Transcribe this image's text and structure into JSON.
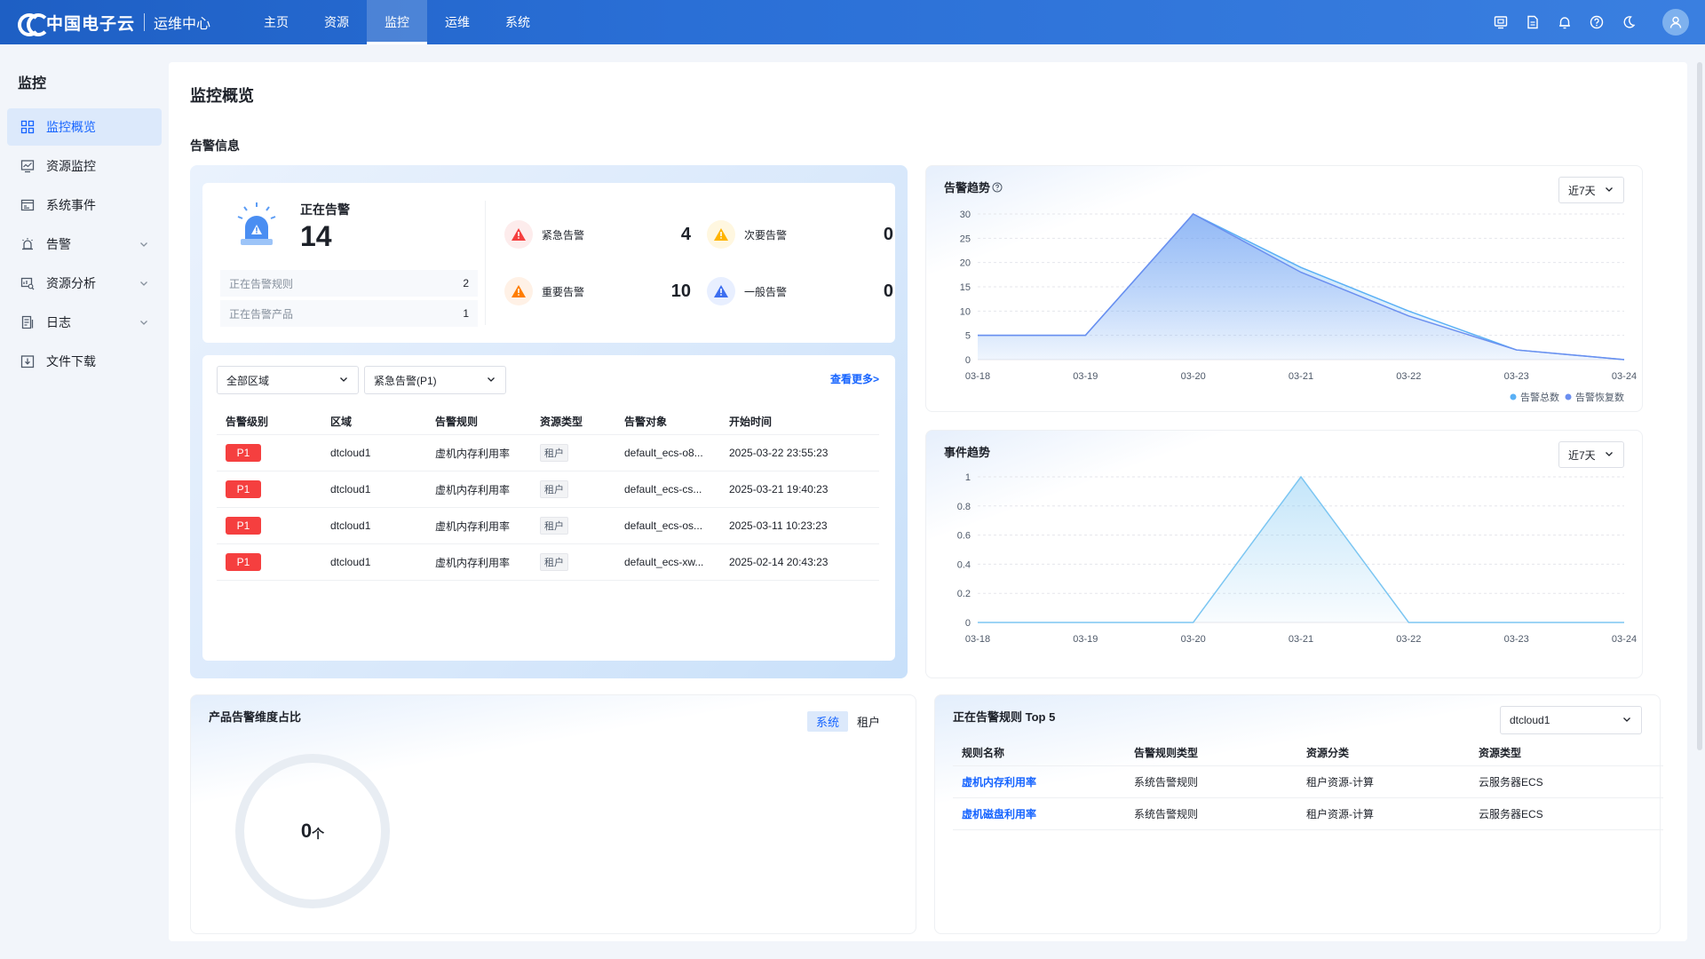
{
  "topbar": {
    "brand": "中国电子云",
    "subtitle": "运维中心",
    "nav": [
      "主页",
      "资源",
      "监控",
      "运维",
      "系统"
    ],
    "active_nav": "监控",
    "icons": [
      "screen-icon",
      "document-icon",
      "bell-icon",
      "help-icon",
      "moon-icon",
      "user-icon"
    ]
  },
  "sidebar": {
    "title": "监控",
    "items": [
      {
        "label": "监控概览",
        "icon": "grid-icon",
        "active": true
      },
      {
        "label": "资源监控",
        "icon": "monitor-chart-icon"
      },
      {
        "label": "系统事件",
        "icon": "event-icon"
      },
      {
        "label": "告警",
        "icon": "alarm-icon",
        "expandable": true
      },
      {
        "label": "资源分析",
        "icon": "analysis-icon",
        "expandable": true
      },
      {
        "label": "日志",
        "icon": "log-icon",
        "expandable": true
      },
      {
        "label": "文件下载",
        "icon": "download-icon"
      }
    ]
  },
  "page": {
    "title": "监控概览",
    "section": "告警信息"
  },
  "alarm_summary": {
    "label": "正在告警",
    "count": "14",
    "rules_label": "正在告警规则",
    "rules_value": "2",
    "products_label": "正在告警产品",
    "products_value": "1",
    "levels": [
      {
        "label": "紧急告警",
        "value": "4",
        "color": "#f53f3f"
      },
      {
        "label": "次要告警",
        "value": "0",
        "color": "#ffb400"
      },
      {
        "label": "重要告警",
        "value": "10",
        "color": "#ff7d00"
      },
      {
        "label": "一般告警",
        "value": "0",
        "color": "#3c6ef0"
      }
    ]
  },
  "alarm_list": {
    "region_select": "全部区域",
    "level_select": "紧急告警(P1)",
    "more": "查看更多>",
    "columns": [
      "告警级别",
      "区域",
      "告警规则",
      "资源类型",
      "告警对象",
      "开始时间"
    ],
    "rows": [
      {
        "level": "P1",
        "region": "dtcloud1",
        "rule": "虚机内存利用率",
        "type": "租户",
        "object": "default_ecs-o8...",
        "time": "2025-03-22 23:55:23"
      },
      {
        "level": "P1",
        "region": "dtcloud1",
        "rule": "虚机内存利用率",
        "type": "租户",
        "object": "default_ecs-cs...",
        "time": "2025-03-21 19:40:23"
      },
      {
        "level": "P1",
        "region": "dtcloud1",
        "rule": "虚机内存利用率",
        "type": "租户",
        "object": "default_ecs-os...",
        "time": "2025-03-11 10:23:23"
      },
      {
        "level": "P1",
        "region": "dtcloud1",
        "rule": "虚机内存利用率",
        "type": "租户",
        "object": "default_ecs-xw...",
        "time": "2025-02-14 20:43:23"
      }
    ]
  },
  "alarm_trend": {
    "title": "告警趋势",
    "range": "近7天",
    "legend": [
      "告警总数",
      "告警恢复数"
    ]
  },
  "event_trend": {
    "title": "事件趋势",
    "range": "近7天"
  },
  "chart_data": [
    {
      "type": "area",
      "title": "告警趋势",
      "x": [
        "03-18",
        "03-19",
        "03-20",
        "03-21",
        "03-22",
        "03-23",
        "03-24"
      ],
      "ylim": [
        0,
        30
      ],
      "yticks": [
        0,
        5,
        10,
        15,
        20,
        25,
        30
      ],
      "series": [
        {
          "name": "告警总数",
          "values": [
            5,
            5,
            30,
            19,
            10,
            2,
            0
          ],
          "color": "#5ab0f5"
        },
        {
          "name": "告警恢复数",
          "values": [
            5,
            5,
            30,
            18,
            9,
            2,
            0
          ],
          "color": "#6b8ff0"
        }
      ],
      "legend_position": "bottom-right",
      "grid": true
    },
    {
      "type": "area",
      "title": "事件趋势",
      "x": [
        "03-18",
        "03-19",
        "03-20",
        "03-21",
        "03-22",
        "03-23",
        "03-24"
      ],
      "ylim": [
        0,
        1
      ],
      "yticks": [
        0,
        0.2,
        0.4,
        0.6,
        0.8,
        1
      ],
      "series": [
        {
          "values": [
            0,
            0,
            0,
            1,
            0,
            0,
            0
          ],
          "color": "#7cc6f2"
        }
      ],
      "grid": true
    }
  ],
  "product_ratio": {
    "title": "产品告警维度占比",
    "toggle": [
      "系统",
      "租户"
    ],
    "active_toggle": "系统",
    "value": "0",
    "unit": "个"
  },
  "top5": {
    "title": "正在告警规则 Top 5",
    "region_select": "dtcloud1",
    "columns": [
      "规则名称",
      "告警规则类型",
      "资源分类",
      "资源类型"
    ],
    "rows": [
      {
        "name": "虚机内存利用率",
        "rule_type": "系统告警规则",
        "category": "租户资源-计算",
        "res_type": "云服务器ECS"
      },
      {
        "name": "虚机磁盘利用率",
        "rule_type": "系统告警规则",
        "category": "租户资源-计算",
        "res_type": "云服务器ECS"
      }
    ]
  }
}
